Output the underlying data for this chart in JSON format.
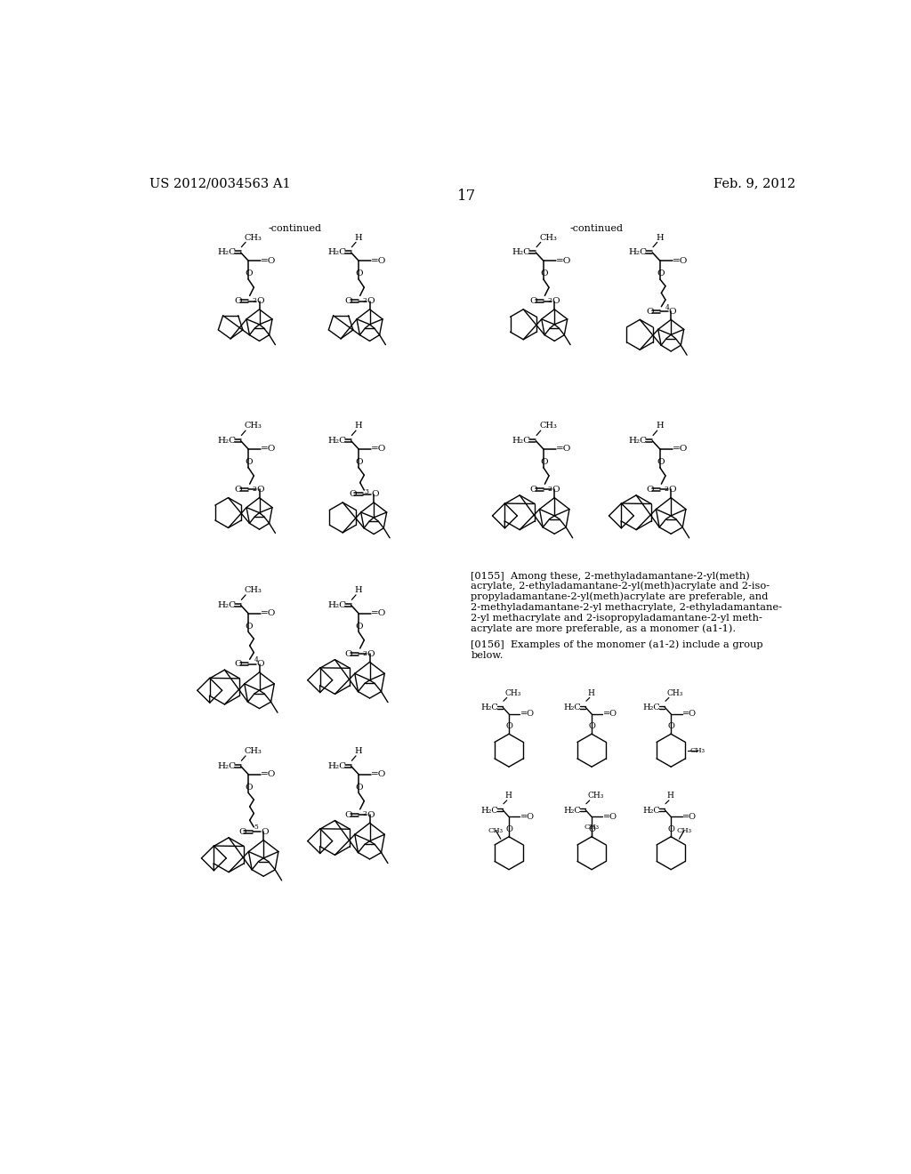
{
  "patent_number": "US 2012/0034563 A1",
  "date": "Feb. 9, 2012",
  "page_number": "17",
  "background_color": "#ffffff",
  "text_color": "#000000",
  "para_0155_lines": [
    "[0155]  Among these, 2-methyladamantane-2-yl(meth)",
    "acrylate, 2-ethyladamantane-2-yl(meth)acrylate and 2-iso-",
    "propyladamantane-2-yl(meth)acrylate are preferable, and",
    "2-methyladamantane-2-yl methacrylate, 2-ethyladamantane-",
    "2-yl methacrylate and 2-isopropyladamantane-2-yl meth-",
    "acrylate are more preferable, as a monomer (a1-1)."
  ],
  "para_0156_lines": [
    "[0156]  Examples of the monomer (a1-2) include a group",
    "below."
  ]
}
